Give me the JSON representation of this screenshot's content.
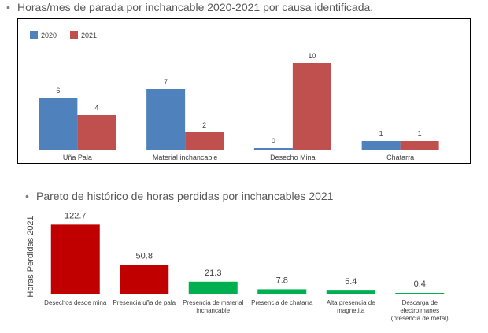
{
  "headings": {
    "bullet": "•",
    "title1": "Horas/mes de parada por inchancable 2020-2021 por causa identificada.",
    "title2": "Pareto de histórico de horas perdidas por inchancables 2021"
  },
  "chart_data": [
    {
      "type": "bar",
      "title": "",
      "xlabel": "",
      "ylabel": "",
      "categories": [
        "Uña Pala",
        "Material inchancable",
        "Desecho Mina",
        "Chatarra"
      ],
      "series": [
        {
          "name": "2020",
          "values": [
            6,
            7,
            0,
            1
          ],
          "color": "#4f81bd"
        },
        {
          "name": "2021",
          "values": [
            4,
            2,
            10,
            1
          ],
          "color": "#c0504d"
        }
      ],
      "ylim": [
        0,
        12
      ],
      "legend": "top-left",
      "grid": false
    },
    {
      "type": "bar",
      "title": "",
      "xlabel": "",
      "ylabel": "Horas Perdidas 2021",
      "categories": [
        "Desechos desde mina",
        "Presencia uña de pala",
        "Presencia de material inchancable",
        "Presencia de chatarra",
        "Alta presencia de magnetita",
        "Descarga de electroimanes (presencia de metal)"
      ],
      "category_lines": [
        [
          "Desechos desde mina"
        ],
        [
          "Presencia uña de pala"
        ],
        [
          "Presencia de material",
          "inchancable"
        ],
        [
          "Presencia de chatarra"
        ],
        [
          "Alta presencia de",
          "magnetita"
        ],
        [
          "Descarga de",
          "electroimanes",
          "(presencia de metal)"
        ]
      ],
      "values": [
        122.7,
        50.8,
        21.3,
        7.8,
        5.4,
        0.4
      ],
      "value_labels": [
        "122.7",
        "50.8",
        "21.3",
        "7.8",
        "5.4",
        "0.4"
      ],
      "bar_colors": [
        "#c00000",
        "#c00000",
        "#00b050",
        "#00b050",
        "#00b050",
        "#00b050"
      ],
      "ylim": [
        0,
        140
      ],
      "grid": false
    }
  ]
}
